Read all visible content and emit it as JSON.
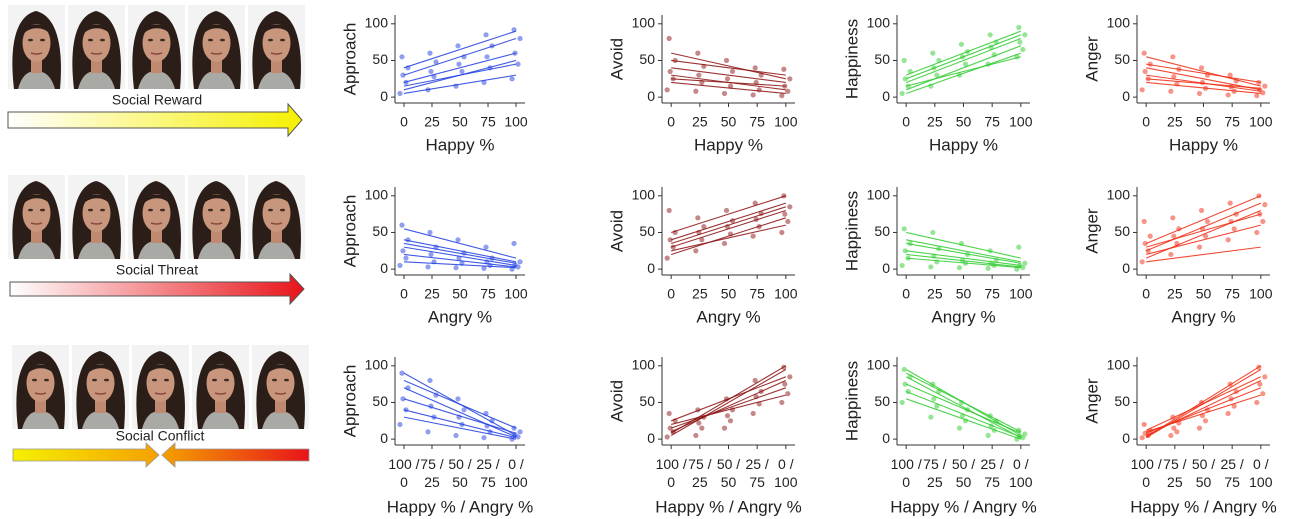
{
  "stimuli": [
    {
      "label": "Social Reward"
    },
    {
      "label": "Social Threat"
    },
    {
      "label": "Social Conflict"
    }
  ],
  "chart_data": [
    {
      "type": "scatter",
      "ylabel": "Approach",
      "xlabel": "Happy %",
      "color": "#1f3de0",
      "xlim": [
        -8,
        108
      ],
      "ylim": [
        -8,
        112
      ],
      "yticks": [
        0,
        50,
        100
      ],
      "xticks": [
        0,
        25,
        50,
        75,
        100
      ],
      "levels": [
        0,
        25,
        50,
        75,
        100
      ],
      "points": [
        [
          5,
          20,
          30,
          40,
          55
        ],
        [
          10,
          28,
          35,
          48,
          60
        ],
        [
          15,
          35,
          45,
          55,
          70
        ],
        [
          20,
          40,
          55,
          70,
          85
        ],
        [
          25,
          45,
          60,
          80,
          92
        ]
      ],
      "lines": [
        [
          5,
          30
        ],
        [
          10,
          50
        ],
        [
          20,
          60
        ],
        [
          30,
          80
        ],
        [
          40,
          90
        ],
        [
          15,
          45
        ]
      ]
    },
    {
      "type": "scatter",
      "ylabel": "Avoid",
      "xlabel": "Happy %",
      "color": "#8b1010",
      "xlim": [
        -8,
        108
      ],
      "ylim": [
        -8,
        112
      ],
      "yticks": [
        0,
        50,
        100
      ],
      "xticks": [
        0,
        25,
        50,
        75,
        100
      ],
      "levels": [
        0,
        25,
        50,
        75,
        100
      ],
      "points": [
        [
          10,
          25,
          35,
          50,
          80
        ],
        [
          8,
          20,
          30,
          42,
          60
        ],
        [
          5,
          15,
          25,
          35,
          50
        ],
        [
          3,
          10,
          20,
          30,
          40
        ],
        [
          2,
          8,
          15,
          25,
          38
        ]
      ],
      "lines": [
        [
          60,
          25
        ],
        [
          40,
          20
        ],
        [
          30,
          10
        ],
        [
          20,
          5
        ],
        [
          50,
          30
        ],
        [
          25,
          15
        ]
      ]
    },
    {
      "type": "scatter",
      "ylabel": "Happiness",
      "xlabel": "Happy %",
      "color": "#2ecc2e",
      "xlim": [
        -8,
        108
      ],
      "ylim": [
        -8,
        112
      ],
      "yticks": [
        0,
        50,
        100
      ],
      "xticks": [
        0,
        25,
        50,
        75,
        100
      ],
      "levels": [
        0,
        25,
        50,
        75,
        100
      ],
      "points": [
        [
          5,
          15,
          25,
          35,
          50
        ],
        [
          15,
          30,
          40,
          50,
          60
        ],
        [
          30,
          45,
          55,
          62,
          72
        ],
        [
          45,
          58,
          68,
          75,
          85
        ],
        [
          55,
          65,
          75,
          85,
          95
        ]
      ],
      "lines": [
        [
          5,
          60
        ],
        [
          10,
          70
        ],
        [
          20,
          80
        ],
        [
          30,
          90
        ],
        [
          15,
          55
        ],
        [
          25,
          85
        ]
      ]
    },
    {
      "type": "scatter",
      "ylabel": "Anger",
      "xlabel": "Happy %",
      "color": "#f02a10",
      "xlim": [
        -8,
        108
      ],
      "ylim": [
        -8,
        112
      ],
      "yticks": [
        0,
        50,
        100
      ],
      "xticks": [
        0,
        25,
        50,
        75,
        100
      ],
      "levels": [
        0,
        25,
        50,
        75,
        100
      ],
      "points": [
        [
          10,
          25,
          35,
          45,
          60
        ],
        [
          8,
          18,
          28,
          38,
          55
        ],
        [
          5,
          12,
          20,
          30,
          40
        ],
        [
          3,
          8,
          14,
          22,
          30
        ],
        [
          2,
          6,
          10,
          15,
          20
        ]
      ],
      "lines": [
        [
          55,
          15
        ],
        [
          40,
          10
        ],
        [
          30,
          8
        ],
        [
          20,
          5
        ],
        [
          45,
          20
        ],
        [
          25,
          12
        ]
      ]
    },
    {
      "type": "scatter",
      "ylabel": "Approach",
      "xlabel": "Angry %",
      "color": "#1f3de0",
      "xlim": [
        -8,
        108
      ],
      "ylim": [
        -8,
        112
      ],
      "yticks": [
        0,
        50,
        100
      ],
      "xticks": [
        0,
        25,
        50,
        75,
        100
      ],
      "levels": [
        0,
        25,
        50,
        75,
        100
      ],
      "points": [
        [
          5,
          15,
          25,
          40,
          60
        ],
        [
          3,
          10,
          20,
          30,
          50
        ],
        [
          2,
          8,
          15,
          22,
          40
        ],
        [
          1,
          5,
          10,
          15,
          30
        ],
        [
          0,
          3,
          6,
          10,
          35
        ]
      ],
      "lines": [
        [
          55,
          15
        ],
        [
          40,
          10
        ],
        [
          30,
          5
        ],
        [
          20,
          3
        ],
        [
          10,
          2
        ],
        [
          35,
          8
        ]
      ]
    },
    {
      "type": "scatter",
      "ylabel": "Avoid",
      "xlabel": "Angry %",
      "color": "#8b1010",
      "xlim": [
        -8,
        108
      ],
      "ylim": [
        -8,
        112
      ],
      "yticks": [
        0,
        50,
        100
      ],
      "xticks": [
        0,
        25,
        50,
        75,
        100
      ],
      "levels": [
        0,
        25,
        50,
        75,
        100
      ],
      "points": [
        [
          15,
          30,
          40,
          50,
          80
        ],
        [
          25,
          40,
          50,
          58,
          70
        ],
        [
          35,
          48,
          58,
          66,
          80
        ],
        [
          45,
          58,
          68,
          76,
          90
        ],
        [
          50,
          65,
          75,
          85,
          100
        ]
      ],
      "lines": [
        [
          20,
          70
        ],
        [
          30,
          80
        ],
        [
          40,
          90
        ],
        [
          50,
          100
        ],
        [
          25,
          60
        ],
        [
          35,
          85
        ]
      ]
    },
    {
      "type": "scatter",
      "ylabel": "Happiness",
      "xlabel": "Angry %",
      "color": "#2ecc2e",
      "xlim": [
        -8,
        108
      ],
      "ylim": [
        -8,
        112
      ],
      "yticks": [
        0,
        50,
        100
      ],
      "xticks": [
        0,
        25,
        50,
        75,
        100
      ],
      "levels": [
        0,
        25,
        50,
        75,
        100
      ],
      "points": [
        [
          5,
          15,
          25,
          35,
          55
        ],
        [
          3,
          10,
          18,
          28,
          50
        ],
        [
          2,
          8,
          12,
          20,
          35
        ],
        [
          1,
          5,
          8,
          12,
          25
        ],
        [
          0,
          2,
          5,
          8,
          30
        ]
      ],
      "lines": [
        [
          50,
          15
        ],
        [
          35,
          8
        ],
        [
          25,
          5
        ],
        [
          15,
          2
        ],
        [
          40,
          10
        ],
        [
          20,
          3
        ]
      ]
    },
    {
      "type": "scatter",
      "ylabel": "Anger",
      "xlabel": "Angry %",
      "color": "#f02a10",
      "xlim": [
        -8,
        108
      ],
      "ylim": [
        -8,
        112
      ],
      "yticks": [
        0,
        50,
        100
      ],
      "xticks": [
        0,
        25,
        50,
        75,
        100
      ],
      "levels": [
        0,
        25,
        50,
        75,
        100
      ],
      "points": [
        [
          10,
          25,
          35,
          45,
          65
        ],
        [
          20,
          35,
          45,
          55,
          70
        ],
        [
          30,
          45,
          55,
          65,
          80
        ],
        [
          40,
          55,
          65,
          75,
          90
        ],
        [
          50,
          65,
          75,
          88,
          100
        ]
      ],
      "lines": [
        [
          15,
          80
        ],
        [
          25,
          90
        ],
        [
          35,
          100
        ],
        [
          20,
          60
        ],
        [
          30,
          75
        ],
        [
          10,
          30
        ]
      ]
    },
    {
      "type": "scatter",
      "ylabel": "Approach",
      "xlabel": "Happy % / Angry %",
      "color": "#1f3de0",
      "xlim": [
        -8,
        108
      ],
      "ylim": [
        -8,
        112
      ],
      "yticks": [
        0,
        50,
        100
      ],
      "xticks": [
        {
          "value": 0,
          "label": "100 / 0"
        },
        {
          "value": 25,
          "label": "75 / 25"
        },
        {
          "value": 50,
          "label": "50 / 50"
        },
        {
          "value": 75,
          "label": "25 / 75"
        },
        {
          "value": 100,
          "label": "0 / 100"
        }
      ],
      "levels": [
        0,
        25,
        50,
        75,
        100
      ],
      "points": [
        [
          20,
          40,
          55,
          70,
          90
        ],
        [
          10,
          30,
          45,
          60,
          80
        ],
        [
          5,
          20,
          30,
          40,
          55
        ],
        [
          2,
          10,
          18,
          25,
          35
        ],
        [
          0,
          3,
          6,
          10,
          15
        ]
      ],
      "lines": [
        [
          90,
          5
        ],
        [
          70,
          3
        ],
        [
          55,
          8
        ],
        [
          40,
          2
        ],
        [
          80,
          15
        ],
        [
          30,
          0
        ]
      ]
    },
    {
      "type": "scatter",
      "ylabel": "Avoid",
      "xlabel": "Happy % / Angry %",
      "color": "#8b1010",
      "xlim": [
        -8,
        108
      ],
      "ylim": [
        -8,
        112
      ],
      "yticks": [
        0,
        50,
        100
      ],
      "xticks": [
        {
          "value": 0,
          "label": "100 / 0"
        },
        {
          "value": 25,
          "label": "75 / 25"
        },
        {
          "value": 50,
          "label": "50 / 50"
        },
        {
          "value": 75,
          "label": "25 / 75"
        },
        {
          "value": 100,
          "label": "0 / 100"
        }
      ],
      "levels": [
        0,
        25,
        50,
        75,
        100
      ],
      "points": [
        [
          3,
          10,
          15,
          25,
          35
        ],
        [
          5,
          15,
          22,
          30,
          40
        ],
        [
          15,
          25,
          32,
          40,
          55
        ],
        [
          35,
          48,
          58,
          65,
          80
        ],
        [
          50,
          62,
          75,
          85,
          98
        ]
      ],
      "lines": [
        [
          5,
          95
        ],
        [
          10,
          80
        ],
        [
          15,
          70
        ],
        [
          20,
          60
        ],
        [
          8,
          100
        ],
        [
          25,
          85
        ]
      ]
    },
    {
      "type": "scatter",
      "ylabel": "Happiness",
      "xlabel": "Happy % / Angry %",
      "color": "#2ecc2e",
      "xlim": [
        -8,
        108
      ],
      "ylim": [
        -8,
        112
      ],
      "yticks": [
        0,
        50,
        100
      ],
      "xticks": [
        {
          "value": 0,
          "label": "100 / 0"
        },
        {
          "value": 25,
          "label": "75 / 25"
        },
        {
          "value": 50,
          "label": "50 / 50"
        },
        {
          "value": 75,
          "label": "25 / 75"
        },
        {
          "value": 100,
          "label": "0 / 100"
        }
      ],
      "levels": [
        0,
        25,
        50,
        75,
        100
      ],
      "points": [
        [
          50,
          65,
          75,
          85,
          95
        ],
        [
          30,
          45,
          55,
          65,
          75
        ],
        [
          15,
          25,
          32,
          40,
          50
        ],
        [
          5,
          12,
          18,
          25,
          32
        ],
        [
          0,
          2,
          4,
          7,
          12
        ]
      ],
      "lines": [
        [
          95,
          5
        ],
        [
          85,
          2
        ],
        [
          75,
          8
        ],
        [
          65,
          3
        ],
        [
          55,
          0
        ],
        [
          90,
          10
        ]
      ]
    },
    {
      "type": "scatter",
      "ylabel": "Anger",
      "xlabel": "Happy % / Angry %",
      "color": "#f02a10",
      "xlim": [
        -8,
        108
      ],
      "ylim": [
        -8,
        112
      ],
      "yticks": [
        0,
        50,
        100
      ],
      "xticks": [
        {
          "value": 0,
          "label": "100 / 0"
        },
        {
          "value": 25,
          "label": "75 / 25"
        },
        {
          "value": 50,
          "label": "50 / 50"
        },
        {
          "value": 75,
          "label": "25 / 75"
        },
        {
          "value": 100,
          "label": "0 / 100"
        }
      ],
      "levels": [
        0,
        25,
        50,
        75,
        100
      ],
      "points": [
        [
          2,
          5,
          8,
          12,
          20
        ],
        [
          5,
          10,
          15,
          22,
          30
        ],
        [
          15,
          25,
          32,
          40,
          50
        ],
        [
          35,
          45,
          55,
          65,
          75
        ],
        [
          50,
          62,
          75,
          85,
          98
        ]
      ],
      "lines": [
        [
          2,
          95
        ],
        [
          5,
          80
        ],
        [
          8,
          70
        ],
        [
          10,
          60
        ],
        [
          3,
          100
        ],
        [
          12,
          85
        ]
      ]
    }
  ]
}
